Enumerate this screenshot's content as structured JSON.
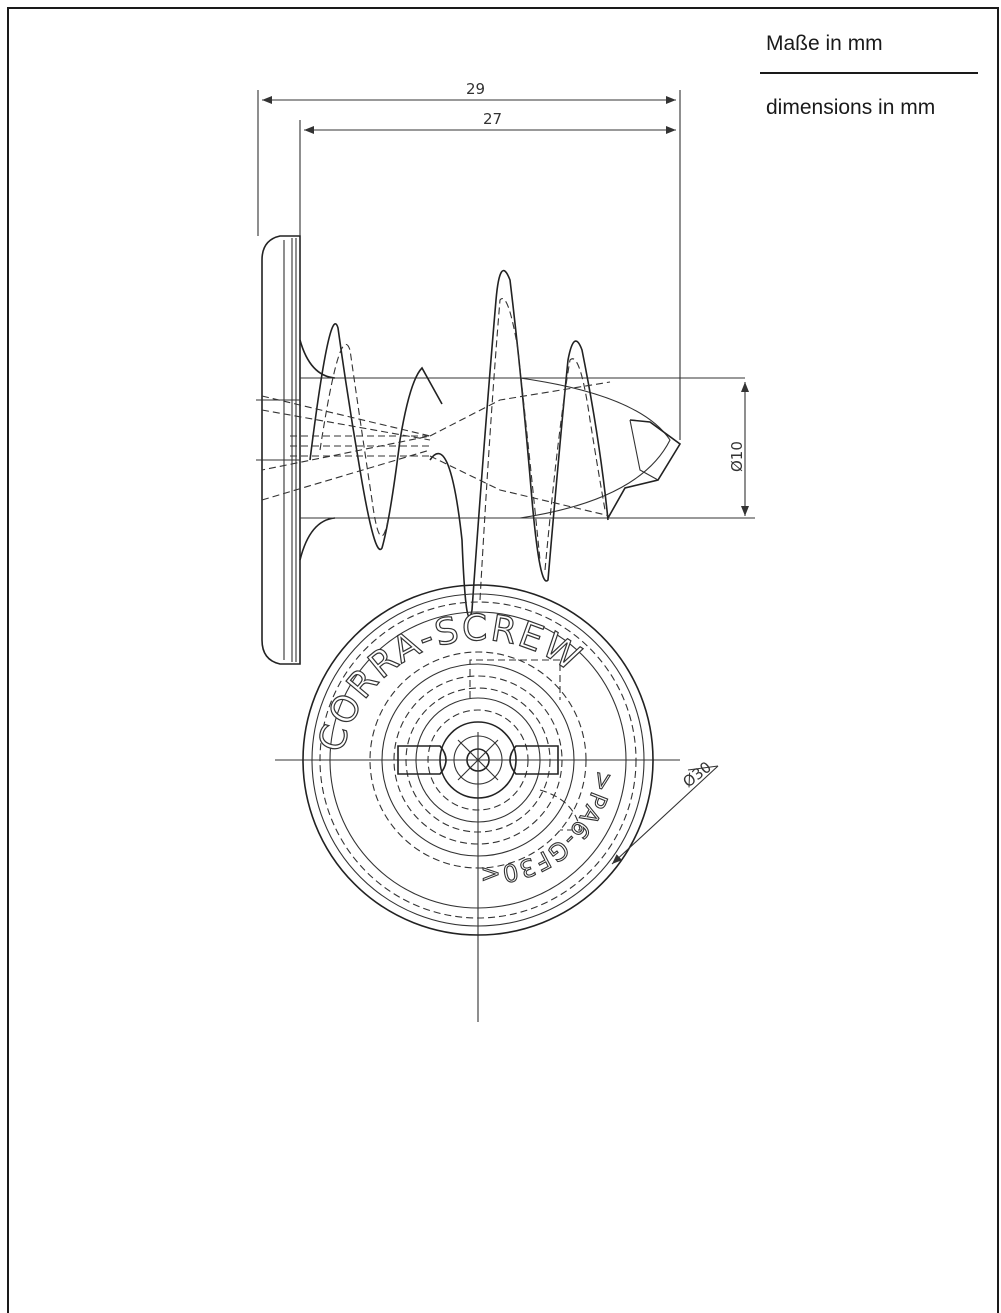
{
  "units": {
    "german": "Maße in mm",
    "english": "dimensions in mm"
  },
  "dimensions": {
    "overall_length": "29",
    "shaft_length": "27",
    "shaft_diameter": "Ø10",
    "head_diameter": "Ø30"
  },
  "head_marking": {
    "brand": "CORRA-SCREW",
    "material": ">PA6-GF30<"
  }
}
